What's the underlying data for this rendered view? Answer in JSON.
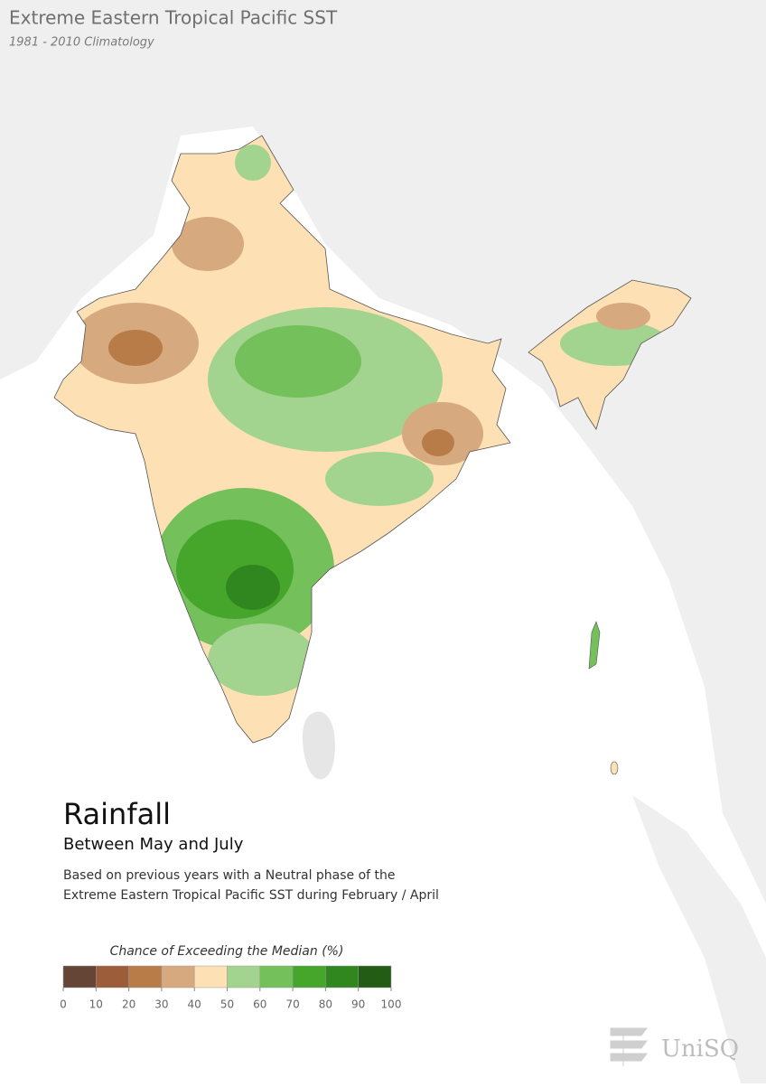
{
  "header": {
    "title": "Extreme Eastern Tropical Pacific SST",
    "subtitle": "1981 - 2010 Climatology"
  },
  "info": {
    "title": "Rainfall",
    "subtitle": "Between May and July",
    "description": [
      "Based on previous years with a Neutral phase of the",
      "Extreme Eastern Tropical Pacific SST during February / April"
    ]
  },
  "legend": {
    "title": "Chance of Exceeding the Median (%)",
    "ticks": [
      0,
      10,
      20,
      30,
      40,
      50,
      60,
      70,
      80,
      90,
      100
    ],
    "colors": [
      "#654535",
      "#9c5e3a",
      "#b87c48",
      "#d6a97e",
      "#fde0b4",
      "#a2d48f",
      "#74c05a",
      "#45a62b",
      "#31871f",
      "#225c15"
    ]
  },
  "logo": {
    "text": "UniSQ"
  }
}
